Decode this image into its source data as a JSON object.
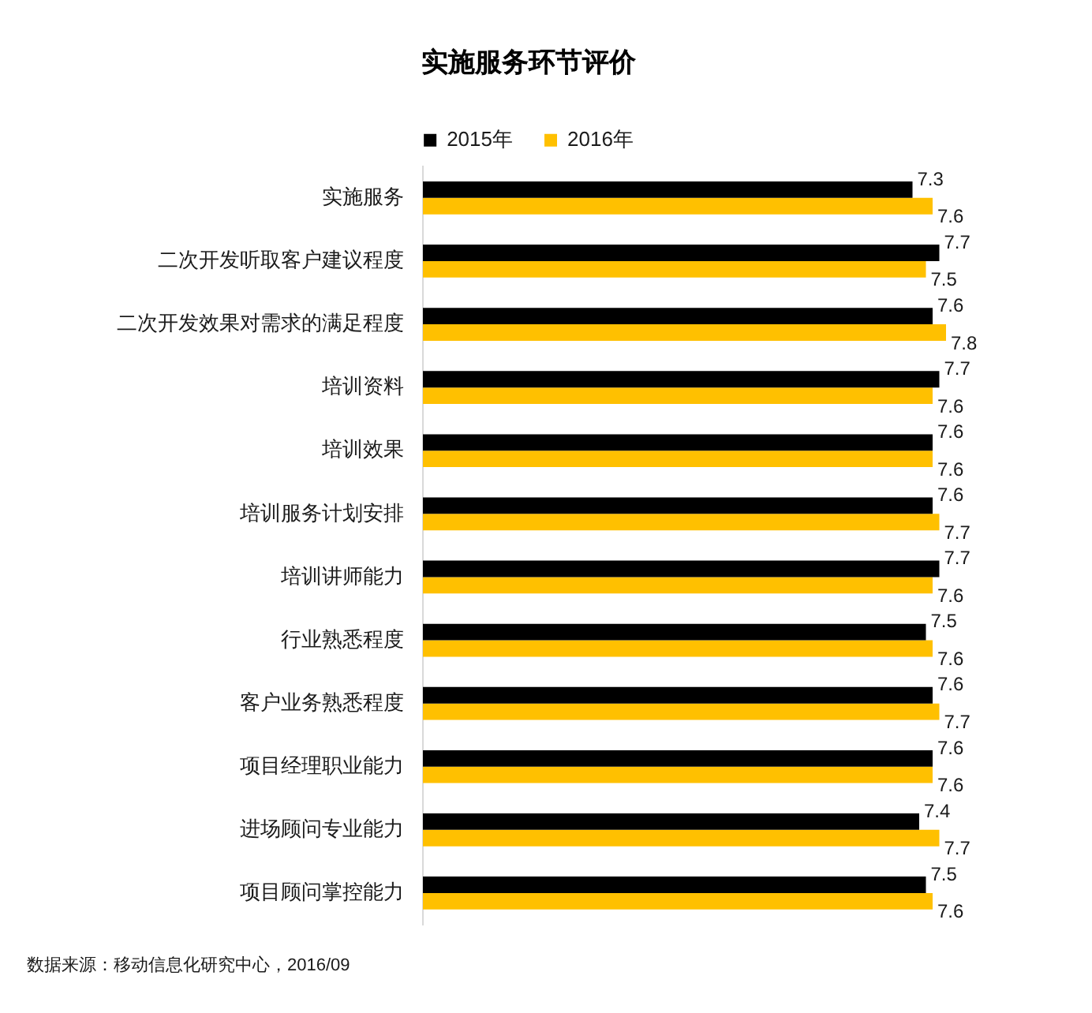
{
  "chart_data": {
    "type": "bar",
    "orientation": "horizontal",
    "title": "实施服务环节评价",
    "categories": [
      "实施服务",
      "二次开发听取客户建议程度",
      "二次开发效果对需求的满足程度",
      "培训资料",
      "培训效果",
      "培训服务计划安排",
      "培训讲师能力",
      "行业熟悉程度",
      "客户业务熟悉程度",
      "项目经理职业能力",
      "进场顾问专业能力",
      "项目顾问掌控能力"
    ],
    "series": [
      {
        "name": "2015年",
        "color": "#000000",
        "values": [
          7.3,
          7.7,
          7.6,
          7.7,
          7.6,
          7.6,
          7.7,
          7.5,
          7.6,
          7.6,
          7.4,
          7.5
        ]
      },
      {
        "name": "2016年",
        "color": "#ffc000",
        "values": [
          7.6,
          7.5,
          7.8,
          7.6,
          7.6,
          7.7,
          7.6,
          7.6,
          7.7,
          7.6,
          7.7,
          7.6
        ]
      }
    ],
    "data_labels": true,
    "legend": "top",
    "annotations": [
      "数据来源：移动信息化研究中心，2016/09"
    ]
  }
}
